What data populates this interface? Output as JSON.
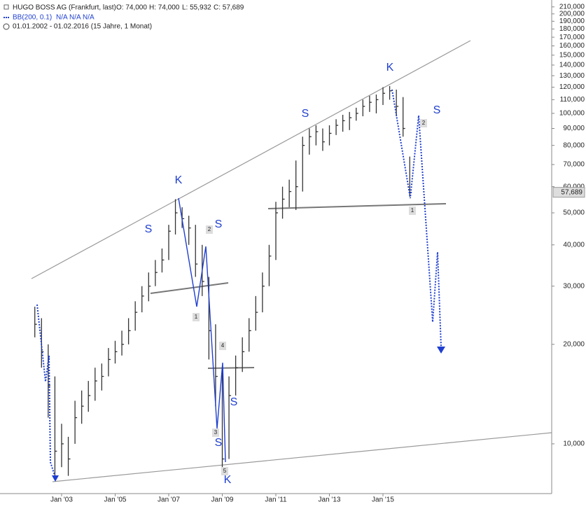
{
  "chart_data": {
    "type": "ohlc",
    "title": "HUGO BOSS AG (Frankfurt, last)",
    "ohlc_readout": [
      "O: 74,000",
      "H: 74,000",
      "L: 55,932",
      "C: 57,689"
    ],
    "indicator": "BB(200, 0.1)",
    "indicator_values": [
      "N/A",
      "N/A",
      "N/A"
    ],
    "date_range": "01.01.2002 - 01.02.2016 (15 Jahre, 1 Monat)",
    "color": "#333333",
    "x": [
      2002,
      2002.25,
      2002.5,
      2002.75,
      2003,
      2003.25,
      2003.5,
      2003.75,
      2004,
      2004.25,
      2004.5,
      2004.75,
      2005,
      2005.25,
      2005.5,
      2005.75,
      2006,
      2006.25,
      2006.5,
      2006.75,
      2007,
      2007.25,
      2007.5,
      2007.75,
      2008,
      2008.25,
      2008.5,
      2008.75,
      2009,
      2009.25,
      2009.5,
      2009.75,
      2010,
      2010.25,
      2010.5,
      2010.75,
      2011,
      2011.25,
      2011.5,
      2011.75,
      2012,
      2012.25,
      2012.5,
      2012.75,
      2013,
      2013.25,
      2013.5,
      2013.75,
      2014,
      2014.25,
      2014.5,
      2014.75,
      2015,
      2015.25,
      2015.5,
      2015.75,
      2016
    ],
    "high": [
      26000,
      24000,
      20000,
      16000,
      11500,
      10500,
      13500,
      14500,
      15500,
      17000,
      17500,
      19500,
      20500,
      22000,
      24000,
      27000,
      30000,
      33000,
      36000,
      39000,
      46000,
      55000,
      52000,
      49000,
      46000,
      40000,
      32000,
      23000,
      17000,
      16000,
      18500,
      21000,
      24000,
      28000,
      33000,
      40000,
      54000,
      60000,
      63000,
      72000,
      85000,
      90000,
      92000,
      90000,
      92000,
      96000,
      99000,
      101000,
      104000,
      110000,
      113000,
      114000,
      120000,
      121000,
      118000,
      112000,
      74000
    ],
    "low": [
      21000,
      17000,
      12000,
      7800,
      8500,
      8000,
      10000,
      11500,
      12500,
      13500,
      14500,
      16000,
      17500,
      18500,
      20000,
      22000,
      25000,
      27000,
      30000,
      33000,
      36000,
      43000,
      45000,
      40000,
      32000,
      28000,
      18000,
      13000,
      8500,
      9000,
      14000,
      16500,
      19000,
      22000,
      25000,
      30000,
      36000,
      48000,
      52000,
      51000,
      58000,
      75000,
      80000,
      77000,
      80000,
      86000,
      88000,
      89000,
      95000,
      98000,
      101000,
      100000,
      106000,
      110000,
      98000,
      85000,
      55932
    ],
    "close": [
      23000,
      19000,
      15000,
      9500,
      10000,
      9000,
      12000,
      13000,
      14000,
      15500,
      16000,
      18000,
      19000,
      20000,
      22000,
      25000,
      28000,
      30000,
      33000,
      36000,
      44000,
      50000,
      48000,
      45000,
      35000,
      31000,
      22000,
      16000,
      9000,
      14000,
      17000,
      19000,
      22000,
      25000,
      30000,
      37000,
      50000,
      55000,
      58000,
      60000,
      80000,
      85000,
      88000,
      82000,
      87000,
      92000,
      95000,
      97000,
      100000,
      105000,
      108000,
      110000,
      115000,
      117000,
      105000,
      90000,
      57689
    ],
    "xlim": [
      2000.7,
      2021.3
    ],
    "xticks": [
      {
        "value": 2003,
        "label": "Jan '03"
      },
      {
        "value": 2005,
        "label": "Jan '05"
      },
      {
        "value": 2007,
        "label": "Jan '07"
      },
      {
        "value": 2009,
        "label": "Jan '09"
      },
      {
        "value": 2011,
        "label": "Jan '11"
      },
      {
        "value": 2013,
        "label": "Jan '13"
      },
      {
        "value": 2015,
        "label": "Jan '15"
      }
    ],
    "ylim": [
      7070,
      220300
    ],
    "log_scale": true,
    "yticks": [
      {
        "value": 10000,
        "label": "10,000"
      },
      {
        "value": 20000,
        "label": "20,000"
      },
      {
        "value": 30000,
        "label": "30,000"
      },
      {
        "value": 40000,
        "label": "40,000"
      },
      {
        "value": 50000,
        "label": "50,000"
      },
      {
        "value": 60000,
        "label": "60,000"
      },
      {
        "value": 70000,
        "label": "70,000"
      },
      {
        "value": 80000,
        "label": "80,000"
      },
      {
        "value": 90000,
        "label": "90,000"
      },
      {
        "value": 100000,
        "label": "100,000"
      },
      {
        "value": 110000,
        "label": "110,000"
      },
      {
        "value": 120000,
        "label": "120,000"
      },
      {
        "value": 130000,
        "label": "130,000"
      },
      {
        "value": 140000,
        "label": "140,000"
      },
      {
        "value": 150000,
        "label": "150,000"
      },
      {
        "value": 160000,
        "label": "160,000"
      },
      {
        "value": 170000,
        "label": "170,000"
      },
      {
        "value": 180000,
        "label": "180,000"
      },
      {
        "value": 190000,
        "label": "190,000"
      },
      {
        "value": 200000,
        "label": "200,000"
      },
      {
        "value": 210000,
        "label": "210,000"
      }
    ],
    "last_price": {
      "value": 57689,
      "label": "57,689"
    },
    "annotations": [
      "K",
      "S",
      "S",
      "K",
      "S",
      "S",
      "S",
      "S",
      "K"
    ],
    "wave_labels": [
      "2",
      "1",
      "4",
      "3",
      "5",
      "2",
      "1"
    ]
  }
}
